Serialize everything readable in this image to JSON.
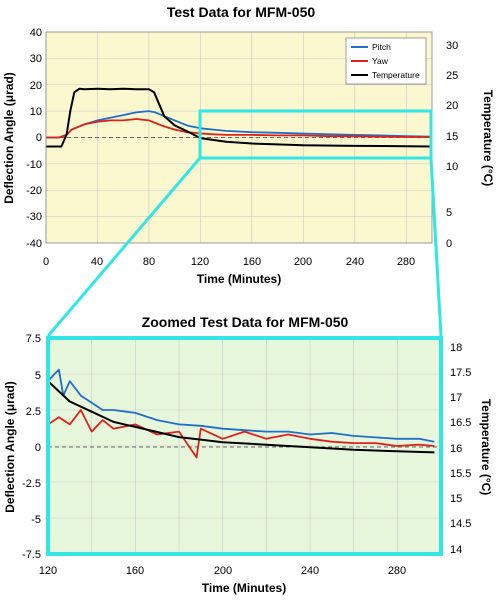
{
  "chart_data": [
    {
      "type": "line",
      "title": "Test Data for MFM-050",
      "xlabel": "Time (Minutes)",
      "ylabel": "Deflection Angle (μrad)",
      "y2label": "Temperature (°C)",
      "xlim": [
        0,
        300
      ],
      "ylim": [
        -40,
        40
      ],
      "y2lim": [
        0,
        35
      ],
      "xticks": [
        "0",
        "40",
        "80",
        "120",
        "160",
        "200",
        "240",
        "280"
      ],
      "yticks": [
        "40",
        "30",
        "20",
        "10",
        "0",
        "-10",
        "-20",
        "-30",
        "-40"
      ],
      "y2ticks": [
        "30",
        "25",
        "20",
        "15",
        "10",
        "5",
        "0"
      ],
      "grid": true,
      "legend_position": "top-right",
      "zero_reference_line": true,
      "series": [
        {
          "name": "Pitch",
          "color": "#1f6fc8",
          "axis": "left",
          "x": [
            0,
            10,
            16,
            20,
            30,
            40,
            50,
            60,
            70,
            80,
            85,
            90,
            100,
            110,
            120,
            130,
            140,
            160,
            180,
            200,
            220,
            240,
            260,
            280,
            300
          ],
          "y": [
            0,
            0,
            1,
            3,
            5,
            6.5,
            7.5,
            8.5,
            9.5,
            10,
            9.5,
            8.5,
            6.5,
            4.5,
            3.5,
            3,
            2.5,
            2,
            1.8,
            1.5,
            1.2,
            1,
            0.8,
            0.5,
            0.3
          ]
        },
        {
          "name": "Yaw",
          "color": "#e0201a",
          "axis": "left",
          "x": [
            0,
            10,
            16,
            20,
            30,
            40,
            50,
            60,
            70,
            80,
            85,
            90,
            100,
            110,
            120,
            130,
            140,
            160,
            180,
            200,
            220,
            240,
            260,
            280,
            300
          ],
          "y": [
            0,
            0,
            1,
            3,
            5,
            6,
            6.5,
            6.5,
            7,
            6.5,
            5.5,
            4.5,
            3,
            2,
            1.5,
            1.2,
            1,
            1,
            0.8,
            0.8,
            0.5,
            0.5,
            0.3,
            0.2,
            0.2
          ]
        },
        {
          "name": "Temperature",
          "color": "#000000",
          "axis": "right",
          "x": [
            0,
            12,
            16,
            19,
            22,
            26,
            30,
            40,
            50,
            60,
            70,
            80,
            84,
            88,
            92,
            100,
            110,
            120,
            140,
            160,
            200,
            240,
            280,
            300
          ],
          "y": [
            16,
            16,
            18,
            22,
            25,
            25.6,
            25.5,
            25.6,
            25.5,
            25.6,
            25.5,
            25.5,
            25,
            23,
            21,
            19.5,
            18.5,
            17.4,
            16.8,
            16.5,
            16.2,
            16.1,
            16.05,
            16
          ]
        }
      ]
    },
    {
      "type": "line",
      "title": "Zoomed Test Data for MFM-050",
      "xlabel": "Time (Minutes)",
      "ylabel": "Deflection Angle (μrad)",
      "y2label": "Temperature (°C)",
      "xlim": [
        120,
        300
      ],
      "ylim": [
        -7.5,
        7.5
      ],
      "y2lim": [
        14,
        18.25
      ],
      "xticks": [
        "120",
        "160",
        "200",
        "240",
        "280"
      ],
      "yticks": [
        "7.5",
        "5",
        "2.5",
        "0",
        "-2.5",
        "-5",
        "-7.5"
      ],
      "y2ticks": [
        "18",
        "17.5",
        "17",
        "16.5",
        "16",
        "15.5",
        "15",
        "14.5",
        "14"
      ],
      "grid": true,
      "zero_reference_line": true,
      "series": [
        {
          "name": "Pitch",
          "color": "#1f6fc8",
          "axis": "left",
          "x": [
            120,
            123,
            125,
            127,
            130,
            135,
            140,
            145,
            150,
            160,
            170,
            180,
            190,
            200,
            210,
            220,
            230,
            240,
            250,
            260,
            270,
            280,
            290,
            297
          ],
          "y": [
            4.5,
            5,
            5.3,
            3.5,
            4.5,
            3.5,
            3,
            2.5,
            2.5,
            2.3,
            1.8,
            1.5,
            1.4,
            1.2,
            1.1,
            1.0,
            1.0,
            0.8,
            0.9,
            0.7,
            0.6,
            0.5,
            0.5,
            0.3
          ]
        },
        {
          "name": "Yaw",
          "color": "#e0201a",
          "axis": "left",
          "x": [
            120,
            125,
            130,
            135,
            140,
            145,
            150,
            160,
            170,
            180,
            188,
            190,
            200,
            210,
            220,
            230,
            240,
            250,
            260,
            270,
            280,
            290,
            297
          ],
          "y": [
            1.5,
            2.0,
            1.5,
            2.5,
            1.0,
            1.8,
            1.2,
            1.5,
            0.8,
            1.0,
            -0.8,
            1.2,
            0.5,
            1.0,
            0.5,
            0.8,
            0.5,
            0.3,
            0.2,
            0.2,
            0.0,
            0.1,
            0.0
          ]
        },
        {
          "name": "Temperature",
          "color": "#000000",
          "axis": "right",
          "x": [
            120,
            125,
            130,
            140,
            150,
            160,
            170,
            180,
            190,
            200,
            220,
            240,
            260,
            280,
            297
          ],
          "y": [
            17.4,
            17.2,
            17.0,
            16.8,
            16.6,
            16.5,
            16.4,
            16.3,
            16.25,
            16.2,
            16.15,
            16.1,
            16.05,
            16.02,
            16.0
          ]
        }
      ]
    }
  ],
  "colors": {
    "top_plot_background": "#fbf7cf",
    "zoom_plot_background": "#e7f7dc",
    "zoom_highlight": "#33e6e6",
    "gridline": "#c8c8c8",
    "zero_line": "#404040"
  }
}
